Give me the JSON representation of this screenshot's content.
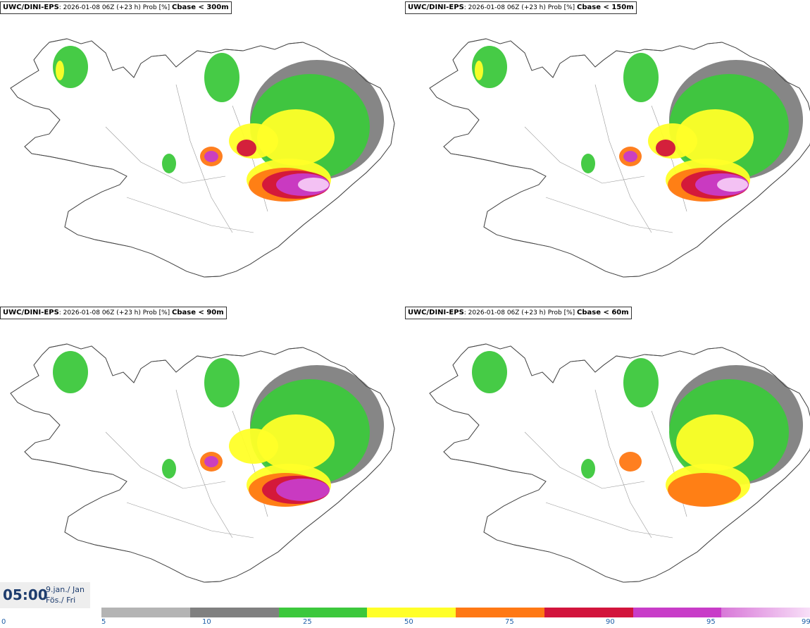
{
  "panels": [
    {
      "model": "UWC/DINI-EPS",
      "info": ": 2026-01-08 06Z (+23 h) Prob [%] ",
      "criterion": "Cbase < 300m",
      "intensity": 1.0
    },
    {
      "model": "UWC/DINI-EPS",
      "info": ": 2026-01-08 06Z (+23 h) Prob [%] ",
      "criterion": "Cbase < 150m",
      "intensity": 0.85
    },
    {
      "model": "UWC/DINI-EPS",
      "info": ": 2026-01-08 06Z (+23 h) Prob [%] ",
      "criterion": "Cbase < 90m",
      "intensity": 0.7
    },
    {
      "model": "UWC/DINI-EPS",
      "info": ": 2026-01-08 06Z (+23 h) Prob [%] ",
      "criterion": "Cbase < 60m",
      "intensity": 0.6
    }
  ],
  "time": {
    "hour": "05:00",
    "date_line": "9.jan./ Jan",
    "day_line": "Fös./ Fri"
  },
  "legend": {
    "ticks": [
      "0",
      "5",
      "10",
      "25",
      "50",
      "75",
      "90",
      "95",
      "99"
    ],
    "colors": [
      "#b4b4b4",
      "#808080",
      "#3cc83c",
      "#ffff28",
      "#ff7814",
      "#d2143c",
      "#c83cc8",
      "#f5c8f5"
    ]
  }
}
